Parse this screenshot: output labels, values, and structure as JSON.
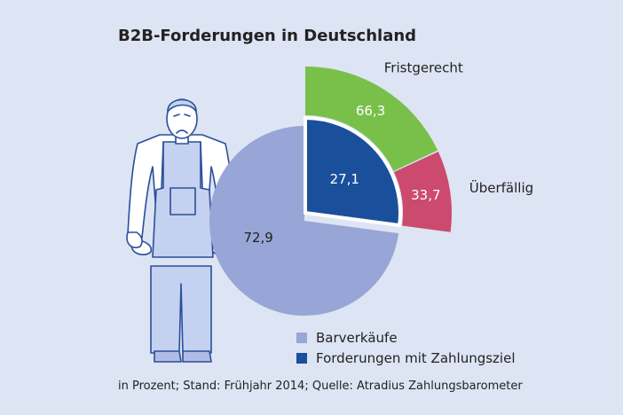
{
  "chart_data": {
    "type": "pie",
    "title": "B2B-Forderungen in Deutschland",
    "slices": [
      {
        "label": "Barverkäufe",
        "value": 72.9,
        "value_label": "72,9",
        "color": "#97a6d6"
      },
      {
        "label": "Forderungen mit Zahlungsziel",
        "value": 27.1,
        "value_label": "27,1",
        "color": "#1a4f9c"
      }
    ],
    "sub_breakdown": {
      "of": "Forderungen mit Zahlungsziel",
      "slices": [
        {
          "label": "Fristgerecht",
          "value": 66.3,
          "value_label": "66,3",
          "color": "#79c04a"
        },
        {
          "label": "Überfällig",
          "value": 33.7,
          "value_label": "33,7",
          "color": "#cc4a6e"
        }
      ]
    },
    "legend": [
      "Barverkäufe",
      "Forderungen mit Zahlungsziel"
    ],
    "legend_position": "bottom-right",
    "source_note": "in Prozent; Stand: Frühjahr 2014; Quelle: Atradius Zahlungsbarometer"
  }
}
